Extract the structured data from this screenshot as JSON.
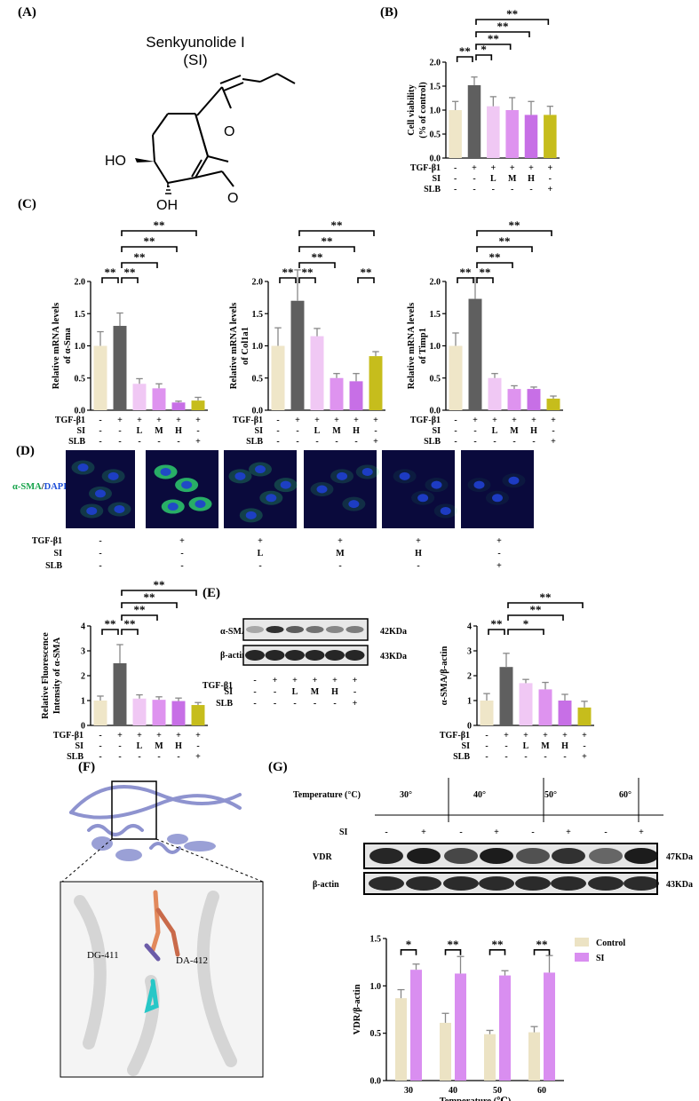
{
  "colors": {
    "ctrl": "#efe6c8",
    "tgf": "#5f5f5f",
    "L": "#f0c8f4",
    "M": "#de93ef",
    "H": "#c76fe6",
    "SLB": "#c6bd1c",
    "gControl": "#ece3c4",
    "gSI": "#d98ef0",
    "confBg": "#0a0a3c",
    "nuclei": "#1f3fd0",
    "actin": "#2bc06a"
  },
  "conditions": {
    "rows": [
      "TGF-β1",
      "SI",
      "SLB"
    ],
    "tgf": [
      "-",
      "+",
      "+",
      "+",
      "+",
      "+"
    ],
    "si": [
      "-",
      "-",
      "L",
      "M",
      "H",
      "-"
    ],
    "slb": [
      "-",
      "-",
      "-",
      "-",
      "-",
      "+"
    ]
  },
  "panelA": {
    "label": "(A)",
    "name": "Senkyunolide I",
    "abbr": "(SI)",
    "atoms": {
      "O1": "O",
      "O2": "O",
      "HO": "HO",
      "OH": "OH"
    }
  },
  "panelB": {
    "label": "(B)"
  },
  "panelC": {
    "label": "(C)"
  },
  "panelD": {
    "label": "(D)",
    "stain_a": "α-SMA",
    "stain_sep": "/",
    "stain_b": "DAPI"
  },
  "panelE": {
    "label": "(E)",
    "blot_rows": [
      "α-SMA",
      "β-actin"
    ],
    "kda": [
      "42KDa",
      "43KDa"
    ]
  },
  "panelF": {
    "label": "(F)",
    "res1": "DG-411",
    "res2": "DA-412"
  },
  "panelG": {
    "label": "(G)",
    "temp_header": "Temperature (°C)",
    "temps": [
      "30°",
      "40°",
      "50°",
      "60°"
    ],
    "si_row": "SI",
    "si_signs": [
      "-",
      "+",
      "-",
      "+",
      "-",
      "+",
      "-",
      "+"
    ],
    "blot_rows": [
      "VDR",
      "β-actin"
    ],
    "kda": [
      "47KDa",
      "43KDa"
    ]
  },
  "chart_data": [
    {
      "id": "B",
      "type": "bar",
      "categories": [
        "1",
        "2",
        "3",
        "4",
        "5",
        "6"
      ],
      "values": [
        1.0,
        1.52,
        1.08,
        1.0,
        0.9,
        0.9
      ],
      "errors": [
        0.18,
        0.17,
        0.2,
        0.26,
        0.28,
        0.18
      ],
      "ylabel": "Cell viability (% of control)",
      "ylim": [
        0,
        2.0
      ],
      "yticks": [
        "0.0",
        "0.5",
        "1.0",
        "1.5",
        "2.0"
      ],
      "sig": [
        {
          "a": 0,
          "b": 1,
          "t": "**"
        },
        {
          "a": 1,
          "b": 2,
          "t": "*"
        },
        {
          "a": 1,
          "b": 3,
          "t": "**"
        },
        {
          "a": 1,
          "b": 4,
          "t": "**"
        },
        {
          "a": 1,
          "b": 5,
          "t": "**"
        }
      ]
    },
    {
      "id": "C1",
      "type": "bar",
      "categories": [
        "1",
        "2",
        "3",
        "4",
        "5",
        "6"
      ],
      "values": [
        1.0,
        1.31,
        0.41,
        0.34,
        0.12,
        0.15
      ],
      "errors": [
        0.22,
        0.2,
        0.08,
        0.07,
        0.02,
        0.05
      ],
      "ylabel": "Relative mRNA levels",
      "ylabel2": "of α-Sma",
      "ylim": [
        0,
        2.0
      ],
      "yticks": [
        "0.0",
        "0.5",
        "1.0",
        "1.5",
        "2.0"
      ],
      "sig": [
        {
          "a": 0,
          "b": 1,
          "t": "**"
        },
        {
          "a": 1,
          "b": 2,
          "t": "**"
        },
        {
          "a": 1,
          "b": 3,
          "t": "**"
        },
        {
          "a": 1,
          "b": 4,
          "t": "**"
        },
        {
          "a": 1,
          "b": 5,
          "t": "**"
        }
      ]
    },
    {
      "id": "C2",
      "type": "bar",
      "categories": [
        "1",
        "2",
        "3",
        "4",
        "5",
        "6"
      ],
      "values": [
        1.0,
        1.7,
        1.15,
        0.5,
        0.45,
        0.84
      ],
      "errors": [
        0.28,
        0.48,
        0.12,
        0.07,
        0.12,
        0.07
      ],
      "ylabel": "Relative mRNA levels",
      "ylabel2": "of Col1a1",
      "ylim": [
        0,
        2.0
      ],
      "yticks": [
        "0.0",
        "0.5",
        "1.0",
        "1.5",
        "2.0"
      ],
      "sig": [
        {
          "a": 0,
          "b": 1,
          "t": "**"
        },
        {
          "a": 1,
          "b": 2,
          "t": "**"
        },
        {
          "a": 1,
          "b": 3,
          "t": "**"
        },
        {
          "a": 1,
          "b": 4,
          "t": "**"
        },
        {
          "a": 1,
          "b": 5,
          "t": "**"
        },
        {
          "a": 4,
          "b": 5,
          "t": "**"
        }
      ]
    },
    {
      "id": "C3",
      "type": "bar",
      "categories": [
        "1",
        "2",
        "3",
        "4",
        "5",
        "6"
      ],
      "values": [
        1.0,
        1.73,
        0.5,
        0.33,
        0.33,
        0.18
      ],
      "errors": [
        0.2,
        0.33,
        0.07,
        0.05,
        0.03,
        0.04
      ],
      "ylabel": "Relative mRNA levels",
      "ylabel2": "of Timp1",
      "ylim": [
        0,
        2.0
      ],
      "yticks": [
        "0.0",
        "0.5",
        "1.0",
        "1.5",
        "2.0"
      ],
      "sig": [
        {
          "a": 0,
          "b": 1,
          "t": "**"
        },
        {
          "a": 1,
          "b": 2,
          "t": "**"
        },
        {
          "a": 1,
          "b": 3,
          "t": "**"
        },
        {
          "a": 1,
          "b": 4,
          "t": "**"
        },
        {
          "a": 1,
          "b": 5,
          "t": "**"
        }
      ]
    },
    {
      "id": "D2",
      "type": "bar",
      "categories": [
        "1",
        "2",
        "3",
        "4",
        "5",
        "6"
      ],
      "values": [
        1.0,
        2.5,
        1.08,
        1.03,
        0.98,
        0.82
      ],
      "errors": [
        0.18,
        0.75,
        0.15,
        0.12,
        0.12,
        0.1
      ],
      "ylabel": "Relative Fluorescence",
      "ylabel2": "Intensity of α-SMA",
      "ylim": [
        0,
        4
      ],
      "yticks": [
        "0",
        "1",
        "2",
        "3",
        "4"
      ],
      "sig": [
        {
          "a": 0,
          "b": 1,
          "t": "**"
        },
        {
          "a": 1,
          "b": 2,
          "t": "**"
        },
        {
          "a": 1,
          "b": 3,
          "t": "**"
        },
        {
          "a": 1,
          "b": 4,
          "t": "**"
        },
        {
          "a": 1,
          "b": 5,
          "t": "**"
        }
      ]
    },
    {
      "id": "E2",
      "type": "bar",
      "categories": [
        "1",
        "2",
        "3",
        "4",
        "5",
        "6"
      ],
      "values": [
        1.0,
        2.35,
        1.7,
        1.45,
        1.0,
        0.72
      ],
      "errors": [
        0.28,
        0.55,
        0.15,
        0.28,
        0.25,
        0.25
      ],
      "ylabel": "α-SMA/β-actin",
      "ylim": [
        0,
        4
      ],
      "yticks": [
        "0",
        "1",
        "2",
        "3",
        "4"
      ],
      "sig": [
        {
          "a": 0,
          "b": 1,
          "t": "**"
        },
        {
          "a": 1,
          "b": 3,
          "t": "*"
        },
        {
          "a": 1,
          "b": 4,
          "t": "**"
        },
        {
          "a": 1,
          "b": 5,
          "t": "**"
        }
      ]
    },
    {
      "id": "G2",
      "type": "bar",
      "categories": [
        "30",
        "40",
        "50",
        "60"
      ],
      "xlabel": "Temperature (℃)",
      "ylabel": "VDR/β-actin",
      "ylim": [
        0,
        1.5
      ],
      "yticks": [
        "0.0",
        "0.5",
        "1.0",
        "1.5"
      ],
      "series": [
        {
          "name": "Control",
          "values": [
            0.87,
            0.61,
            0.49,
            0.51
          ],
          "errors": [
            0.09,
            0.1,
            0.04,
            0.06
          ]
        },
        {
          "name": "SI",
          "values": [
            1.17,
            1.13,
            1.11,
            1.14
          ],
          "errors": [
            0.06,
            0.18,
            0.05,
            0.18
          ]
        }
      ],
      "sig": [
        "*",
        "**",
        "**",
        "**"
      ]
    }
  ]
}
